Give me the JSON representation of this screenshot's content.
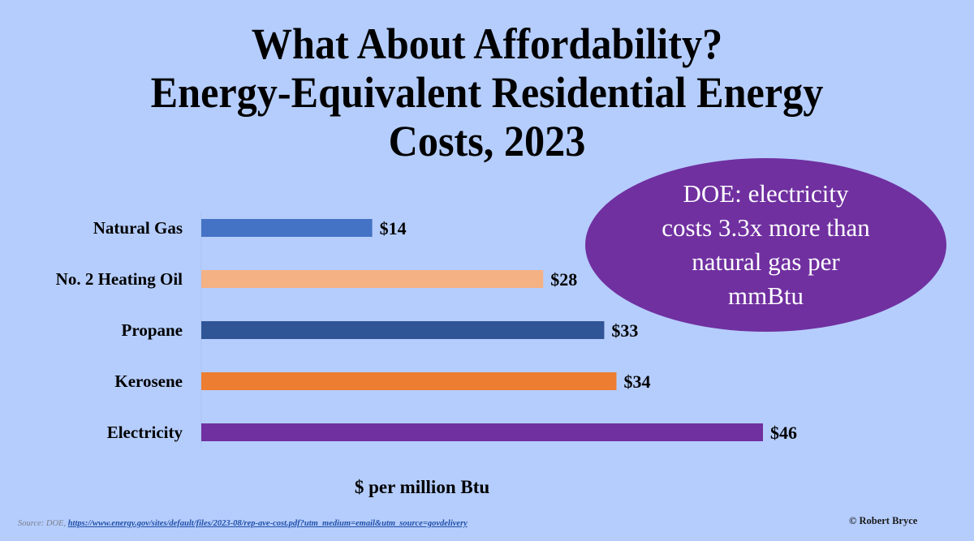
{
  "slide": {
    "title_lines": [
      "What About Affordability?",
      "Energy-Equivalent Residential Energy",
      "Costs, 2023"
    ],
    "callout": {
      "lines": [
        "DOE: electricity",
        "costs 3.3x more than",
        "natural gas per",
        "mmBtu"
      ],
      "color": "#7030a0"
    },
    "source_prefix": "Source: DOE, ",
    "source_link": "https://www.energy.gov/sites/default/files/2023-08/rep-ave-cost.pdf?utm_medium=email&utm_source=govdelivery",
    "copyright": "© Robert Bryce",
    "background": "#b5cdfd"
  },
  "chart_data": {
    "type": "bar",
    "orientation": "horizontal",
    "title": "Energy-Equivalent Residential Energy Costs, 2023",
    "xlabel": "$ per million Btu",
    "ylabel": "",
    "categories": [
      "Natural Gas",
      "No. 2 Heating Oil",
      "Propane",
      "Kerosene",
      "Electricity"
    ],
    "values": [
      14,
      28,
      33,
      34,
      46
    ],
    "value_labels": [
      "$14",
      "$28",
      "$33",
      "$34",
      "$46"
    ],
    "colors": [
      "#4472c4",
      "#f4b183",
      "#2f5597",
      "#ed7d31",
      "#7030a0"
    ],
    "xlim": [
      0,
      46
    ],
    "grid": false,
    "legend": "none"
  }
}
